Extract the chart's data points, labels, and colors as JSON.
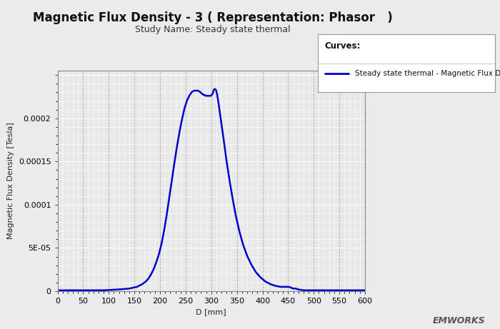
{
  "title": "Magnetic Flux Density - 3 ( Representation: Phasor   )",
  "subtitle": "Study Name: Steady state thermal",
  "xlabel": "D [mm]",
  "ylabel": "Magnetic Flux Density [Tesla]",
  "legend_title": "Curves:",
  "legend_label": "Steady state thermal - Magnetic Flux Density",
  "line_color": "#0000CC",
  "line_width": 1.8,
  "xlim": [
    0,
    600
  ],
  "ylim": [
    0,
    0.000255
  ],
  "xticks": [
    0,
    50,
    100,
    150,
    200,
    250,
    300,
    350,
    400,
    450,
    500,
    550,
    600
  ],
  "yticks": [
    0,
    5e-05,
    0.0001,
    0.00015,
    0.0002,
    0.00025
  ],
  "ytick_labels": [
    "0",
    "5E-05",
    "0.0001",
    "0.00015",
    "0.0002",
    ""
  ],
  "background_color": "#ebebeb",
  "plot_bg_color": "#e8e8e8",
  "grid_major_color": "#ffffff",
  "grid_minor_color": "#ffffff",
  "grid_x_dash_color": "#aaaaaa",
  "title_fontsize": 12,
  "subtitle_fontsize": 9,
  "axis_label_fontsize": 8,
  "tick_fontsize": 8,
  "legend_fontsize": 8,
  "emworks_text": "EMWORKS",
  "curve_x": [
    0,
    30,
    60,
    90,
    120,
    140,
    155,
    165,
    172,
    178,
    183,
    188,
    193,
    198,
    203,
    208,
    213,
    218,
    223,
    228,
    233,
    238,
    243,
    248,
    253,
    258,
    263,
    268,
    271,
    274,
    277,
    279,
    281,
    283,
    285,
    287,
    289,
    291,
    293,
    295,
    297,
    299,
    301,
    303,
    305,
    307,
    309,
    311,
    313,
    316,
    320,
    325,
    330,
    336,
    342,
    348,
    355,
    362,
    370,
    378,
    387,
    396,
    406,
    416,
    426,
    436,
    443,
    448,
    452,
    456,
    460,
    465,
    470,
    480,
    490,
    500,
    520,
    540,
    560,
    580,
    600
  ],
  "curve_y": [
    1e-06,
    1e-06,
    1e-06,
    1e-06,
    2e-06,
    3e-06,
    5e-06,
    8e-06,
    1.1e-05,
    1.5e-05,
    2e-05,
    2.6e-05,
    3.4e-05,
    4.3e-05,
    5.5e-05,
    7e-05,
    8.8e-05,
    0.000108,
    0.000128,
    0.000148,
    0.000167,
    0.000184,
    0.000199,
    0.000212,
    0.000221,
    0.000227,
    0.000231,
    0.000232,
    0.000232,
    0.000232,
    0.000231,
    0.00023,
    0.000229,
    0.000228,
    0.000227,
    0.000227,
    0.000226,
    0.000226,
    0.000226,
    0.000226,
    0.000226,
    0.000226,
    0.000227,
    0.000229,
    0.000233,
    0.000234,
    0.000233,
    0.000229,
    0.000222,
    0.00021,
    0.000193,
    0.000172,
    0.00015,
    0.000127,
    0.000106,
    8.7e-05,
    6.9e-05,
    5.4e-05,
    4.1e-05,
    3.1e-05,
    2.2e-05,
    1.6e-05,
    1.1e-05,
    8e-06,
    6e-06,
    5e-06,
    5e-06,
    5e-06,
    5e-06,
    4e-06,
    3e-06,
    3e-06,
    2e-06,
    1e-06,
    1e-06,
    1e-06,
    1e-06,
    1e-06,
    1e-06,
    1e-06,
    1e-06
  ]
}
